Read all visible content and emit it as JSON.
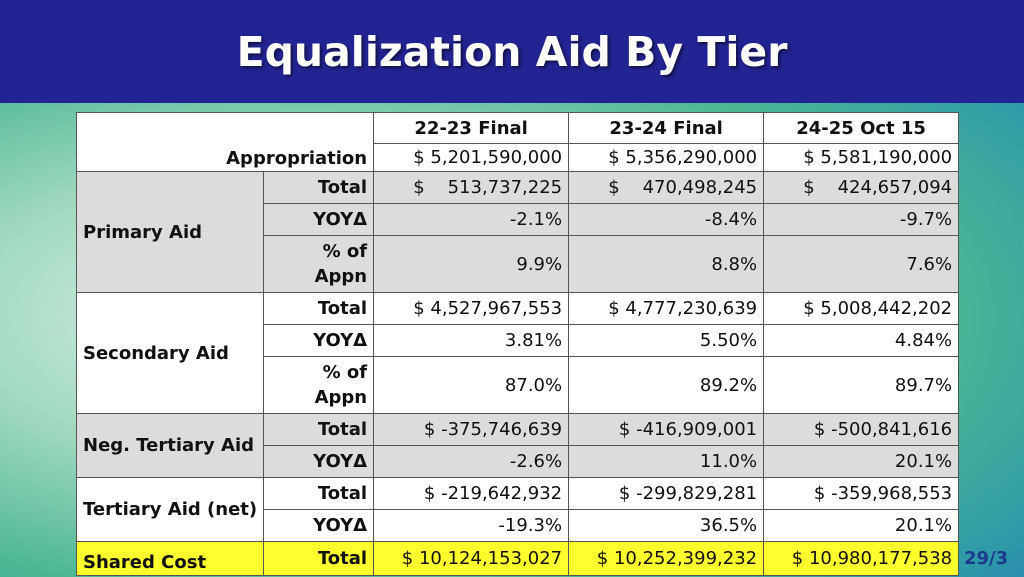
{
  "title": "Equalization Aid By Tier",
  "columns": [
    "22-23 Final",
    "23-24 Final",
    "24-25 Oct 15"
  ],
  "appropriation": {
    "label": "Appropriation",
    "values": [
      "$ 5,201,590,000",
      "$ 5,356,290,000",
      "$ 5,581,190,000"
    ]
  },
  "primary": {
    "label": "Primary Aid",
    "total_label": "Total",
    "total": [
      "$    513,737,225",
      "$    470,498,245",
      "$    424,657,094"
    ],
    "yoy_label": "YOYΔ",
    "yoy": [
      "-2.1%",
      "-8.4%",
      "-9.7%"
    ],
    "pct_label_1": "% of",
    "pct_label_2": "Appn",
    "pct": [
      "9.9%",
      "8.8%",
      "7.6%"
    ]
  },
  "secondary": {
    "label": "Secondary Aid",
    "total_label": "Total",
    "total": [
      "$ 4,527,967,553",
      "$ 4,777,230,639",
      "$ 5,008,442,202"
    ],
    "yoy_label": "YOYΔ",
    "yoy": [
      "3.81%",
      "5.50%",
      "4.84%"
    ],
    "pct_label_1": "% of",
    "pct_label_2": "Appn",
    "pct": [
      "87.0%",
      "89.2%",
      "89.7%"
    ]
  },
  "neg_tertiary": {
    "label": "Neg. Tertiary Aid",
    "total_label": "Total",
    "total": [
      "$ -375,746,639",
      "$ -416,909,001",
      "$ -500,841,616"
    ],
    "yoy_label": "YOYΔ",
    "yoy": [
      "-2.6%",
      "11.0%",
      "20.1%"
    ]
  },
  "tertiary_net": {
    "label": "Tertiary Aid (net)",
    "total_label": "Total",
    "total": [
      "$ -219,642,932",
      "$ -299,829,281",
      "$ -359,968,553"
    ],
    "yoy_label": "YOYΔ",
    "yoy": [
      "-19.3%",
      "36.5%",
      "20.1%"
    ]
  },
  "shared_cost": {
    "label": "Shared Cost",
    "total_label": "Total",
    "total": [
      "$ 10,124,153,027",
      "$ 10,252,399,232",
      "$ 10,980,177,538"
    ]
  },
  "page_number": "29/3"
}
